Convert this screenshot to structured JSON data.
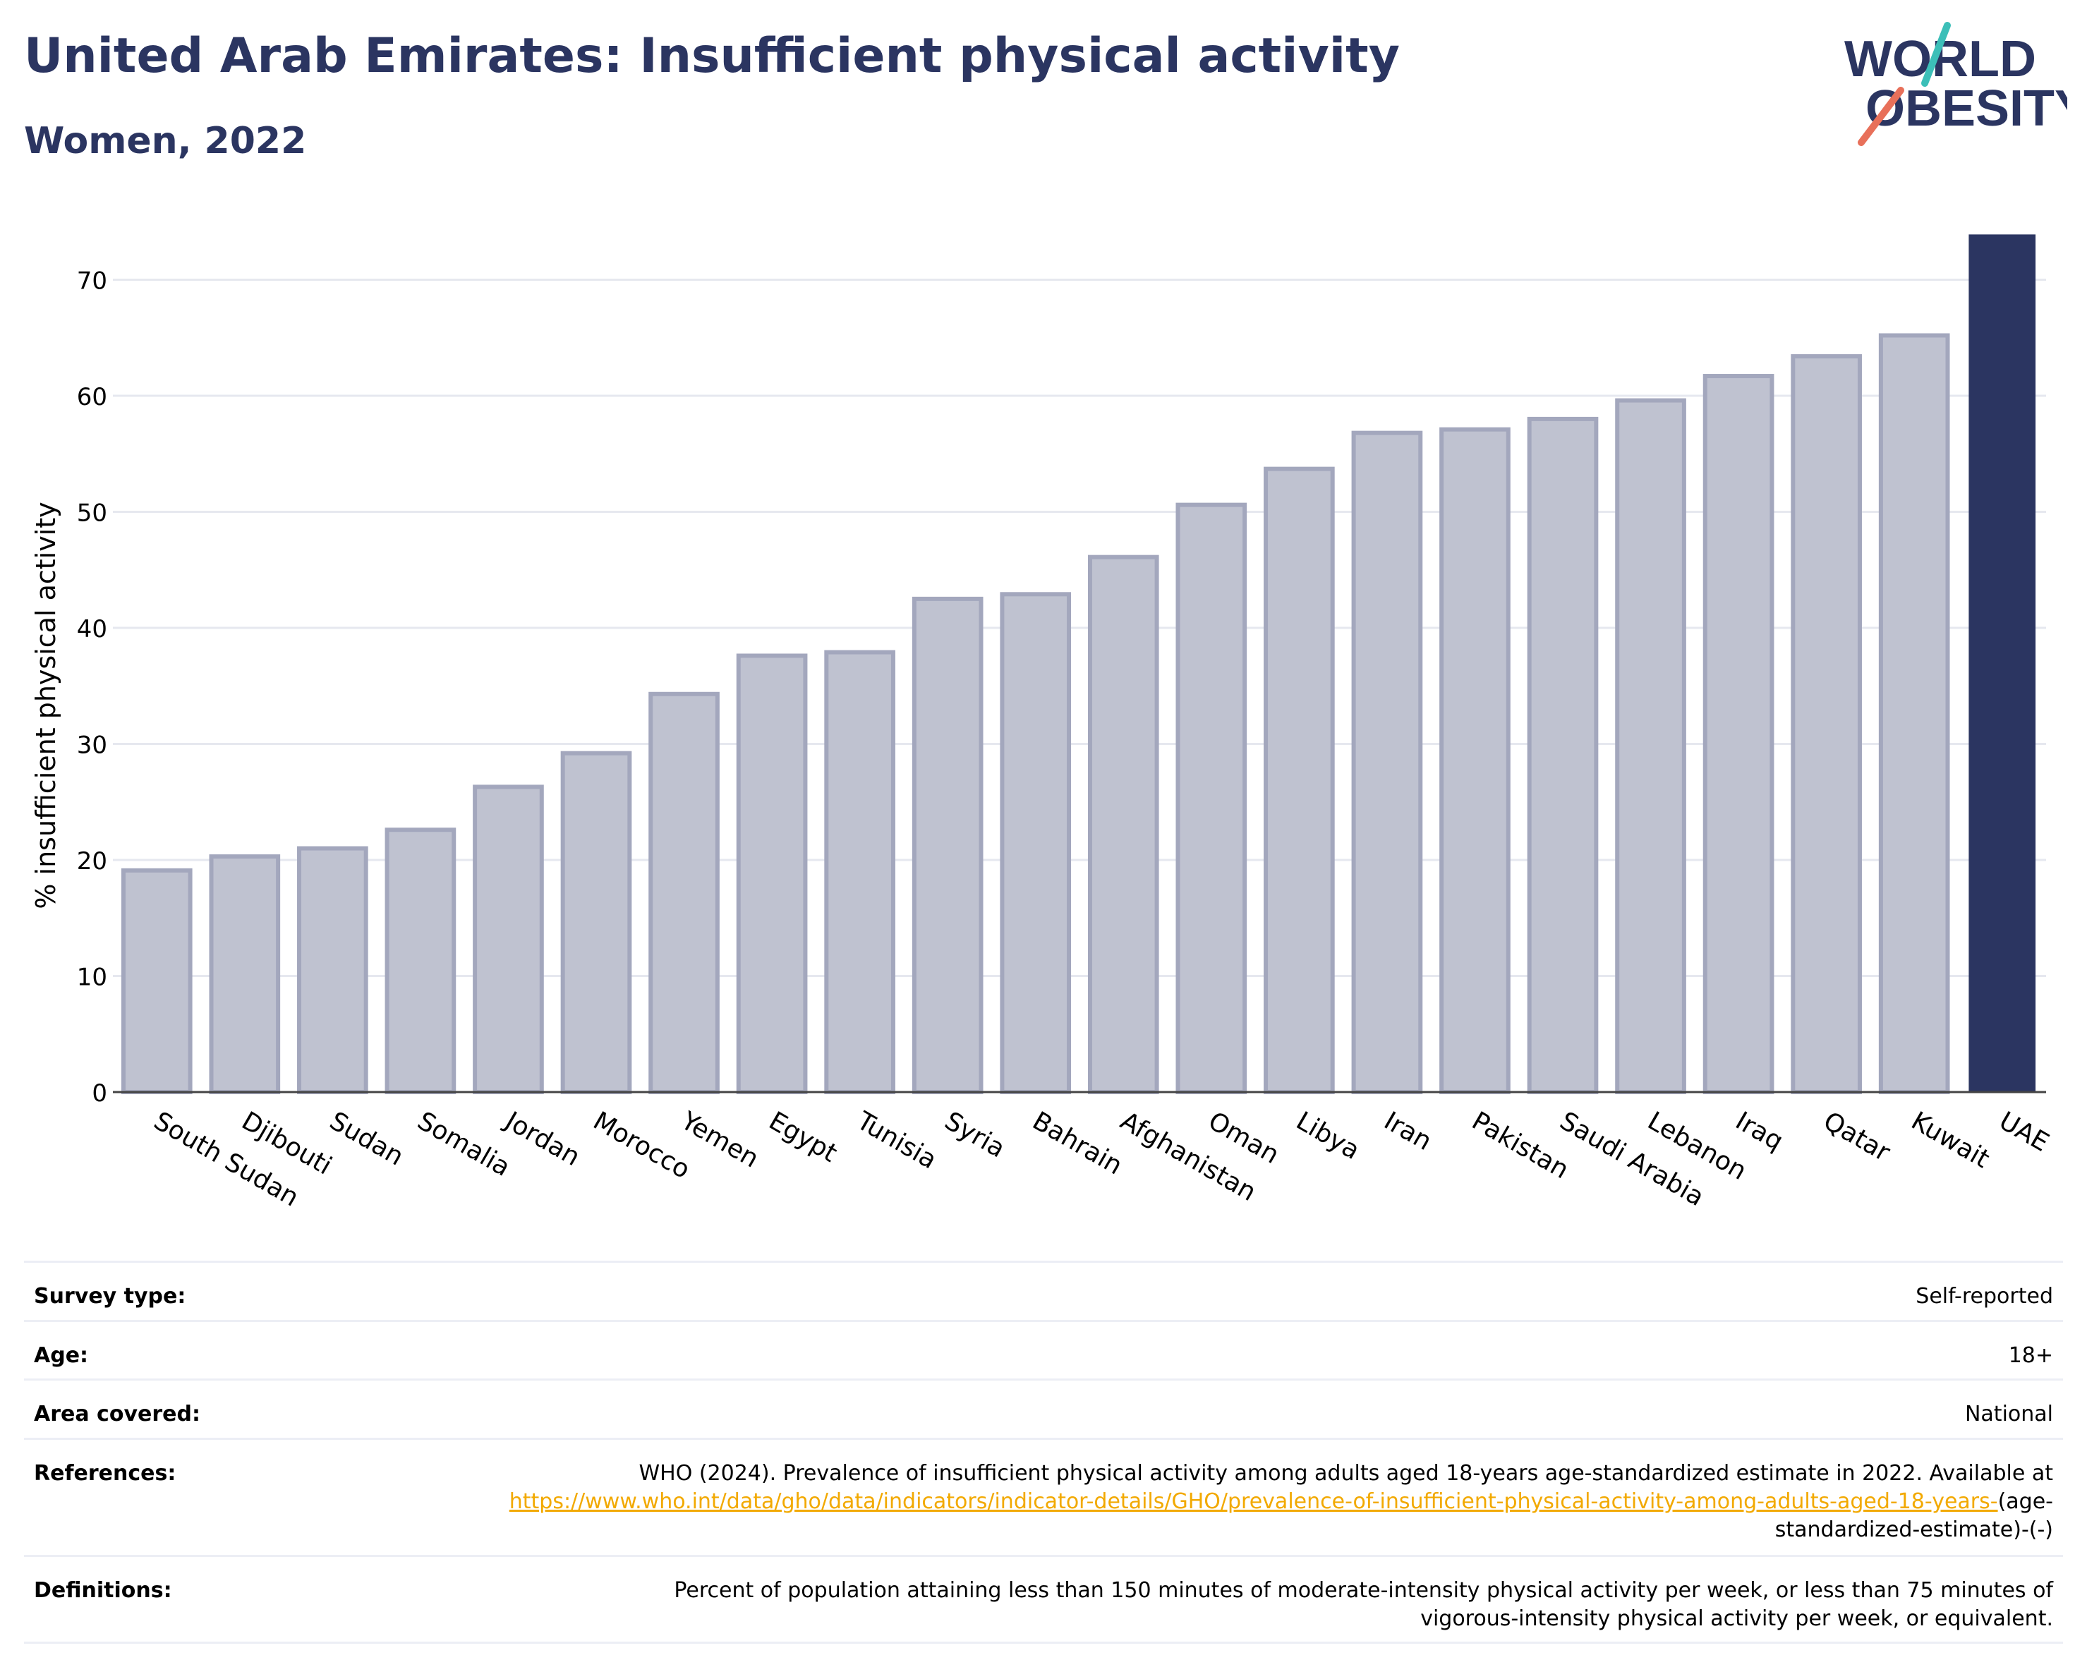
{
  "header": {
    "title": "United Arab Emirates: Insufficient physical activity",
    "subtitle": "Women, 2022"
  },
  "logo": {
    "line1": "WORLD",
    "line2": "OBESITY",
    "name": "world-obesity-logo"
  },
  "colors": {
    "title": "#2b3561",
    "highlight_bar": "#2b3561",
    "other_bar_fill": "#bfc2d0",
    "other_bar_stroke": "#a3a7bd",
    "gridline": "#e6e8ef",
    "link": "#f2a900",
    "logo_teal": "#3cbfb8",
    "logo_coral": "#e8705a"
  },
  "chart_data": {
    "type": "bar",
    "title": "United Arab Emirates: Insufficient physical activity",
    "subtitle": "Women, 2022",
    "xlabel": "",
    "ylabel": "% insufficient physical activity",
    "ylim": [
      0,
      74
    ],
    "yticks": [
      0,
      10,
      20,
      30,
      40,
      50,
      60,
      70
    ],
    "grid": true,
    "highlight": "UAE",
    "categories": [
      "South Sudan",
      "Djibouti",
      "Sudan",
      "Somalia",
      "Jordan",
      "Morocco",
      "Yemen",
      "Egypt",
      "Tunisia",
      "Syria",
      "Bahrain",
      "Afghanistan",
      "Oman",
      "Libya",
      "Iran",
      "Pakistan",
      "Saudi Arabia",
      "Lebanon",
      "Iraq",
      "Qatar",
      "Kuwait",
      "UAE"
    ],
    "values": [
      19.1,
      20.3,
      21.0,
      22.6,
      26.3,
      29.2,
      34.3,
      37.6,
      37.9,
      42.5,
      42.9,
      46.1,
      50.6,
      53.7,
      56.8,
      57.1,
      58.0,
      59.6,
      61.7,
      63.4,
      65.2,
      73.9
    ]
  },
  "info": {
    "rows": [
      {
        "label": "Survey type:",
        "value": "Self-reported"
      },
      {
        "label": "Age:",
        "value": "18+"
      },
      {
        "label": "Area covered:",
        "value": "National"
      }
    ],
    "references": {
      "label": "References:",
      "text": "WHO (2024). Prevalence of insufficient physical activity among adults aged 18-years age-standardized estimate in 2022. Available at",
      "link": "https://www.who.int/data/gho/data/indicators/indicator-details/GHO/prevalence-of-insufficient-physical-activity-among-adults-aged-18-years-",
      "suffix": "(age-standardized-estimate)-(-)"
    },
    "definitions": {
      "label": "Definitions:",
      "text": "Percent of population attaining less than 150 minutes of moderate-intensity physical activity per week, or less than 75 minutes of vigorous-intensity physical activity per week, or equivalent."
    }
  }
}
